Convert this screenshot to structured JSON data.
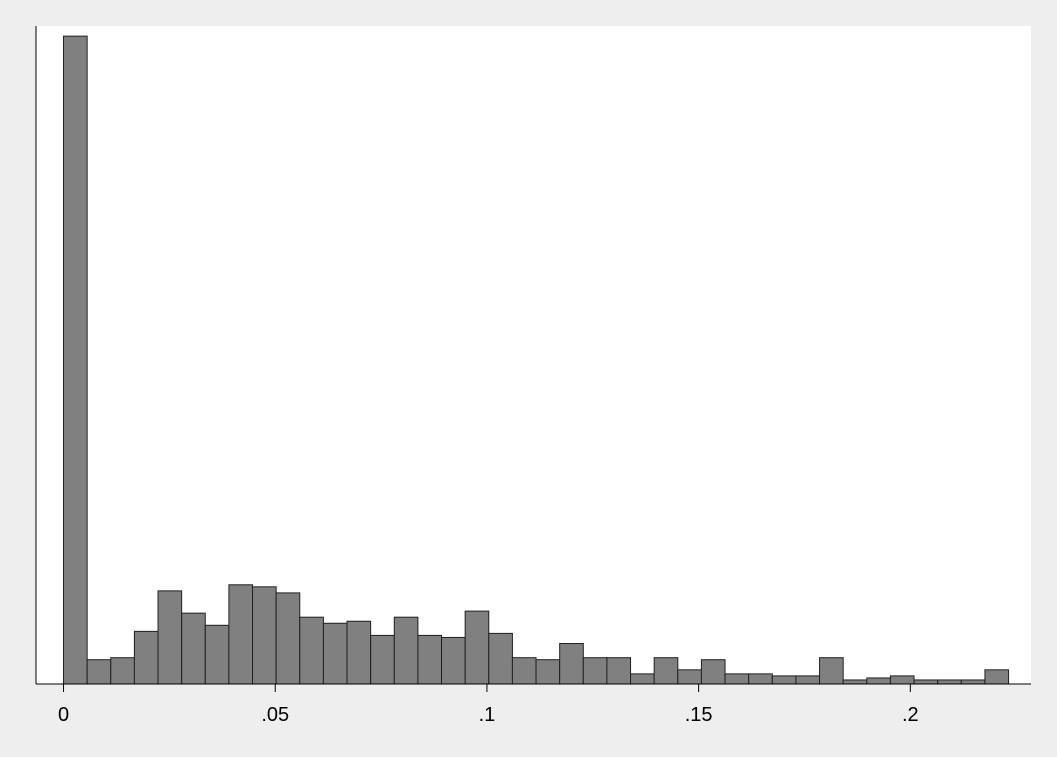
{
  "chart_data": {
    "type": "bar",
    "title": "",
    "xlabel": "",
    "ylabel": "",
    "grid": false,
    "x_ticks": [
      {
        "value": 0,
        "label": "0"
      },
      {
        "value": 0.05,
        "label": ".05"
      },
      {
        "value": 0.1,
        "label": ".1"
      },
      {
        "value": 0.15,
        "label": ".15"
      },
      {
        "value": 0.2,
        "label": ".2"
      }
    ],
    "xlim": [
      -0.0065,
      0.2285
    ],
    "bin_width": 0.00558,
    "bin_start": 0,
    "values": [
      640,
      24,
      26,
      52,
      92,
      70,
      58,
      98,
      96,
      90,
      66,
      60,
      62,
      48,
      66,
      48,
      46,
      72,
      50,
      26,
      24,
      40,
      26,
      26,
      10,
      26,
      14,
      24,
      10,
      10,
      8,
      8,
      26,
      4,
      6,
      8,
      4,
      4,
      4,
      14
    ],
    "ylim": [
      0,
      650
    ],
    "colors": {
      "bar_fill": "#808080",
      "bar_stroke": "#202020",
      "plot_bg": "#ffffff",
      "page_bg": "#eeeeee"
    }
  }
}
